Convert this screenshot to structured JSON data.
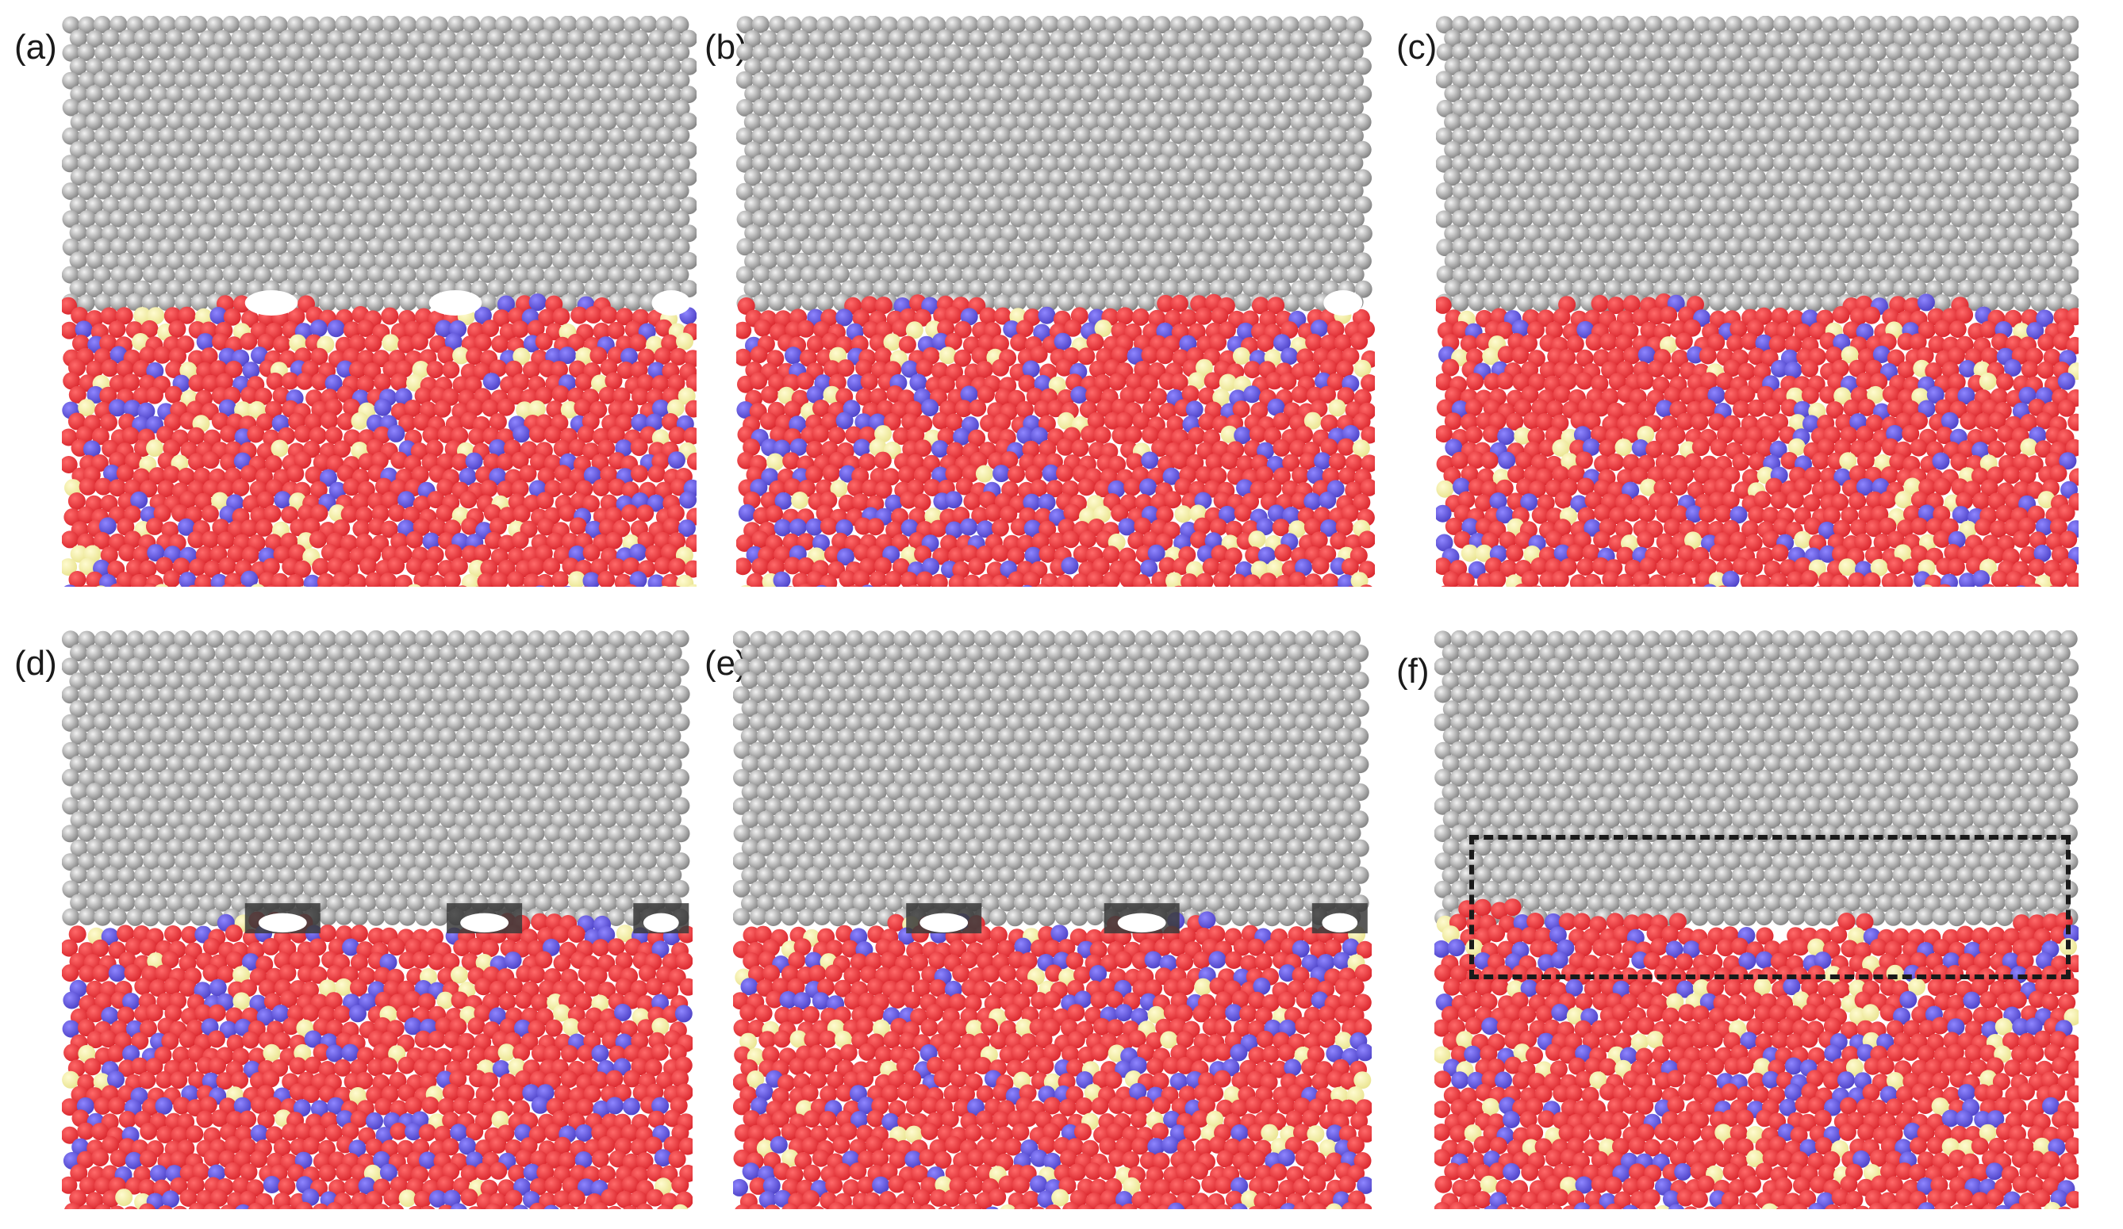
{
  "figure": {
    "panels": [
      {
        "label": "(a)",
        "gaps": [
          0.33,
          0.62,
          0.96
        ],
        "gap_style": "void",
        "interface": "flat",
        "highlight_region": false
      },
      {
        "label": "(b)",
        "gaps": [
          0.95
        ],
        "gap_style": "void",
        "interface": "flat",
        "highlight_region": false
      },
      {
        "label": "(c)",
        "gaps": [],
        "gap_style": "none",
        "interface": "flat",
        "highlight_region": false
      },
      {
        "label": "(d)",
        "gaps": [
          0.35,
          0.67,
          0.95
        ],
        "gap_style": "dark-void",
        "interface": "flat",
        "highlight_region": false
      },
      {
        "label": "(e)",
        "gaps": [
          0.33,
          0.64,
          0.95
        ],
        "gap_style": "dark-void",
        "interface": "flat",
        "highlight_region": false
      },
      {
        "label": "(f)",
        "gaps": [],
        "gap_style": "none",
        "interface": "wavy",
        "highlight_region": true
      }
    ],
    "atom_colors": {
      "top_crystal_light": "#f2f2f2",
      "top_crystal_dark": "#7d7d7d",
      "substrate_primary": "#d8232a",
      "substrate_secondary": "#4b3fc4",
      "substrate_minor": "#e9e38e",
      "void": "#ffffff",
      "void_shadow": "#3a3a3a"
    },
    "atom_fractions": {
      "substrate_primary": 0.8,
      "substrate_secondary": 0.14,
      "substrate_minor": 0.06
    }
  }
}
